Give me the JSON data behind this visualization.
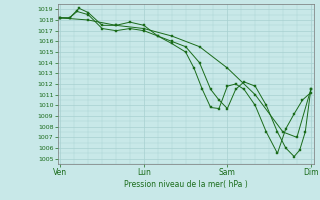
{
  "title": "Pression niveau de la mer( hPa )",
  "yticks": [
    1005,
    1006,
    1007,
    1008,
    1009,
    1010,
    1011,
    1012,
    1013,
    1014,
    1015,
    1016,
    1017,
    1018,
    1019
  ],
  "xtick_labels": [
    "Ven",
    "Lun",
    "Sam",
    "Dim"
  ],
  "xtick_positions": [
    0.0,
    3.0,
    6.0,
    9.0
  ],
  "bg_color": "#c8e8e8",
  "grid_color": "#a8d0d0",
  "line_color": "#1a6b1a",
  "series1_x": [
    0.0,
    0.33,
    0.67,
    1.0,
    1.5,
    2.0,
    2.5,
    3.0,
    3.5,
    4.0,
    4.5,
    5.0,
    5.4,
    5.7,
    6.0,
    6.3,
    6.6,
    7.0,
    7.4,
    7.8,
    8.1,
    8.4,
    8.6,
    8.8,
    9.0
  ],
  "series1_y": [
    1018.2,
    1018.2,
    1019.1,
    1018.7,
    1017.5,
    1017.5,
    1017.8,
    1017.5,
    1016.5,
    1016.0,
    1015.5,
    1014.0,
    1011.5,
    1010.5,
    1009.7,
    1011.5,
    1012.2,
    1011.8,
    1010.0,
    1007.5,
    1006.0,
    1005.2,
    1005.8,
    1007.5,
    1011.5
  ],
  "series2_x": [
    0.0,
    0.33,
    0.6,
    1.0,
    1.5,
    2.0,
    2.5,
    3.0,
    3.5,
    4.0,
    4.5,
    4.8,
    5.1,
    5.4,
    5.7,
    6.0,
    6.3,
    6.6,
    7.0,
    7.4,
    7.8,
    8.1,
    8.4,
    8.7,
    9.0
  ],
  "series2_y": [
    1018.2,
    1018.2,
    1018.8,
    1018.5,
    1017.2,
    1017.0,
    1017.2,
    1017.0,
    1016.5,
    1015.8,
    1015.0,
    1013.5,
    1011.5,
    1009.8,
    1009.7,
    1011.8,
    1012.0,
    1011.5,
    1010.0,
    1007.5,
    1005.5,
    1007.8,
    1009.2,
    1010.5,
    1011.2
  ],
  "series3_x": [
    0.0,
    1.0,
    2.0,
    3.0,
    4.0,
    5.0,
    6.0,
    7.0,
    8.0,
    8.5,
    9.0
  ],
  "series3_y": [
    1018.2,
    1018.0,
    1017.5,
    1017.2,
    1016.5,
    1015.5,
    1013.5,
    1011.0,
    1007.5,
    1007.0,
    1011.5
  ],
  "figsize": [
    3.2,
    2.0
  ],
  "dpi": 100
}
